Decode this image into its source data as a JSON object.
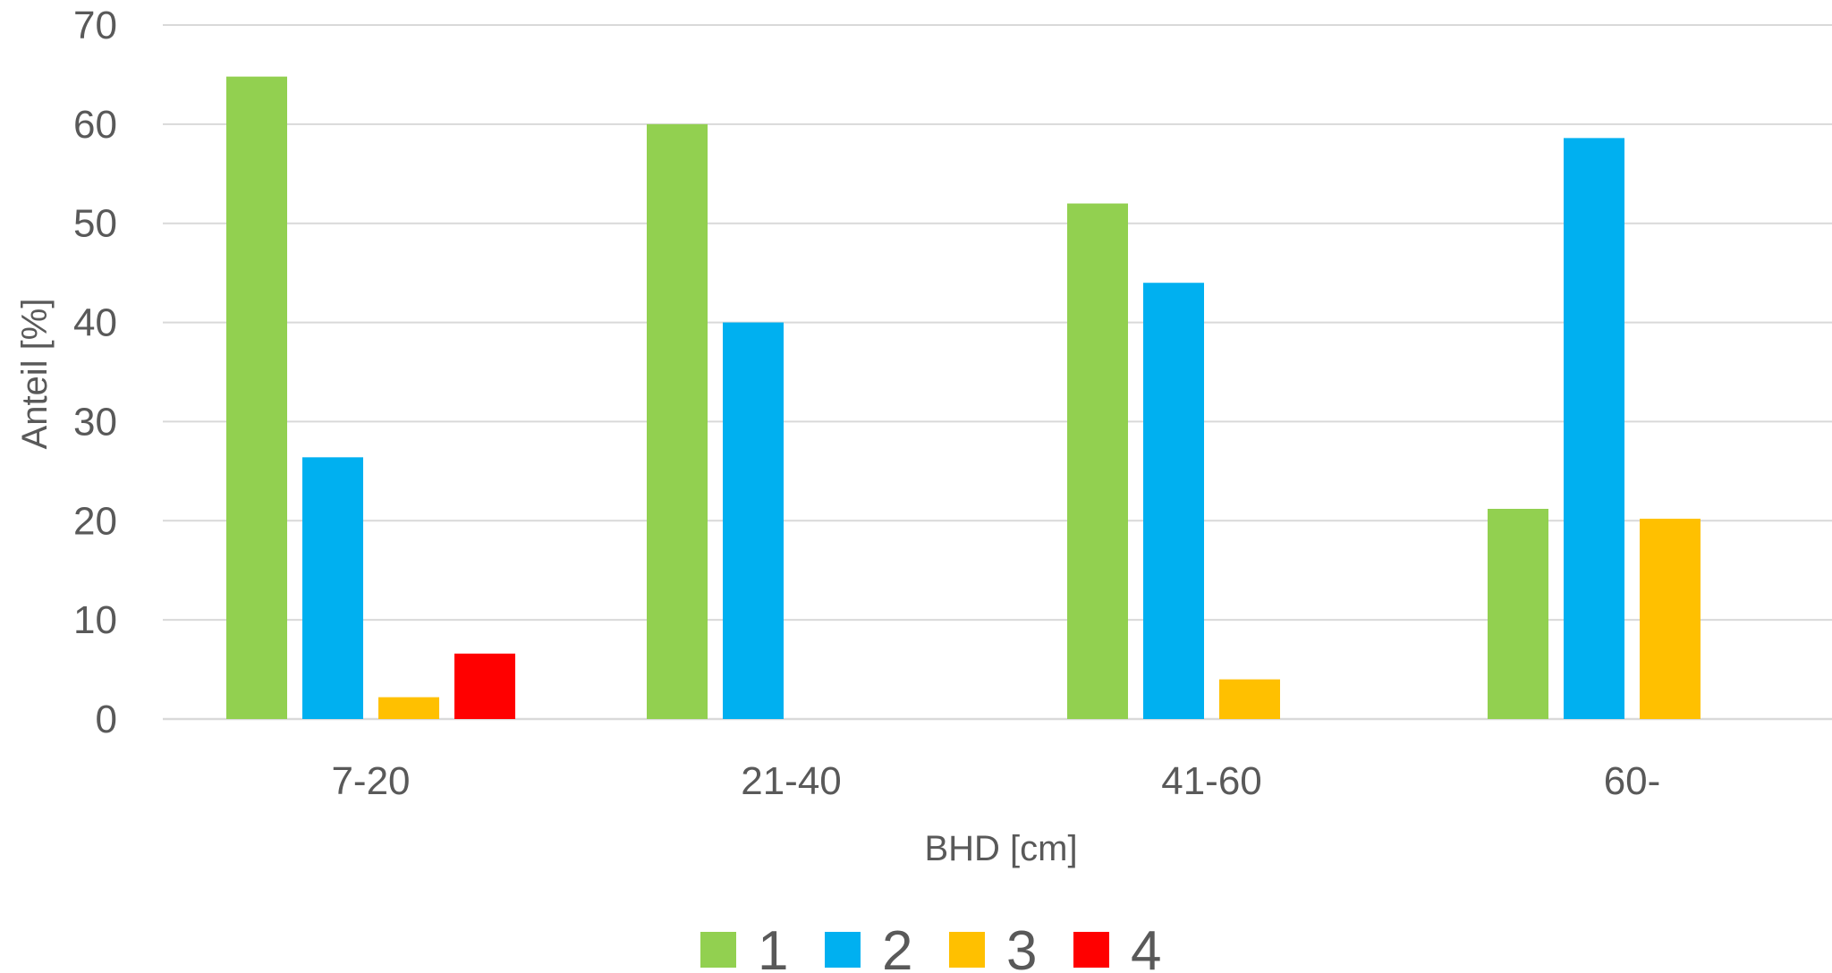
{
  "chart_data": {
    "type": "bar",
    "categories": [
      "7-20",
      "21-40",
      "41-60",
      "60-"
    ],
    "series": [
      {
        "name": "1",
        "color": "#92D050",
        "values": [
          64.8,
          60.0,
          52.0,
          21.2
        ]
      },
      {
        "name": "2",
        "color": "#00B0F0",
        "values": [
          26.4,
          40.0,
          44.0,
          58.6
        ]
      },
      {
        "name": "3",
        "color": "#FFC000",
        "values": [
          2.2,
          0,
          4.0,
          20.2
        ]
      },
      {
        "name": "4",
        "color": "#FF0000",
        "values": [
          6.6,
          0,
          0,
          0
        ]
      }
    ],
    "title": "",
    "xlabel": "BHD [cm]",
    "ylabel": "Anteil [%]",
    "ylim": [
      0,
      70
    ],
    "yticks": [
      "0",
      "10",
      "20",
      "30",
      "40",
      "50",
      "60",
      "70"
    ],
    "grid": true,
    "legend_position": "bottom"
  }
}
